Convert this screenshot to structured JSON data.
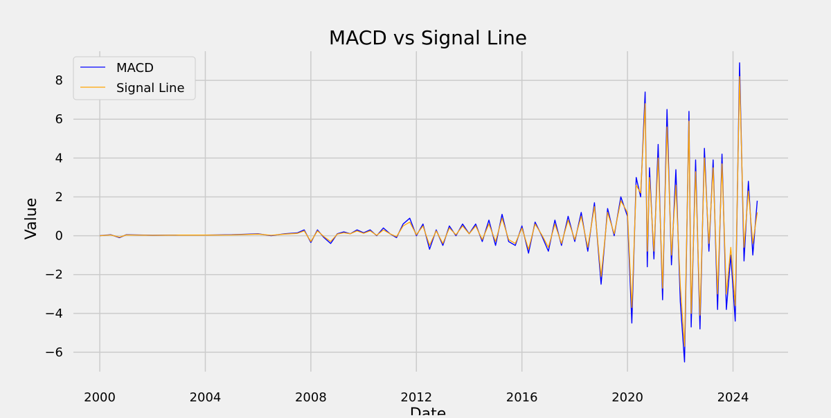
{
  "chart_data": {
    "type": "line",
    "title": "MACD vs Signal Line",
    "xlabel": "Date",
    "ylabel": "Value",
    "xlim": [
      "1999-01-01",
      "2026-02-01"
    ],
    "ylim": [
      -7.0,
      9.5
    ],
    "x_ticks": [
      {
        "value": "2000-01-01",
        "label": "2000"
      },
      {
        "value": "2004-01-01",
        "label": "2004"
      },
      {
        "value": "2008-01-01",
        "label": "2008"
      },
      {
        "value": "2012-01-01",
        "label": "2012"
      },
      {
        "value": "2016-01-01",
        "label": "2016"
      },
      {
        "value": "2020-01-01",
        "label": "2020"
      },
      {
        "value": "2024-01-01",
        "label": "2024"
      }
    ],
    "y_ticks": [
      {
        "value": -6,
        "label": "−6"
      },
      {
        "value": -4,
        "label": "−4"
      },
      {
        "value": -2,
        "label": "−2"
      },
      {
        "value": 0,
        "label": "0"
      },
      {
        "value": 2,
        "label": "2"
      },
      {
        "value": 4,
        "label": "4"
      },
      {
        "value": 6,
        "label": "6"
      },
      {
        "value": 8,
        "label": "8"
      }
    ],
    "grid": true,
    "legend": "top-left",
    "series": [
      {
        "name": "MACD",
        "color": "#0000ff",
        "x": [
          "2000-01-01",
          "2000-06-01",
          "2000-10-01",
          "2001-01-01",
          "2002-01-01",
          "2003-01-01",
          "2004-01-01",
          "2005-01-01",
          "2006-01-01",
          "2006-07-01",
          "2007-01-01",
          "2007-07-01",
          "2007-10-01",
          "2008-01-01",
          "2008-04-01",
          "2008-07-01",
          "2008-10-01",
          "2009-01-01",
          "2009-04-01",
          "2009-07-01",
          "2009-10-01",
          "2010-01-01",
          "2010-04-01",
          "2010-07-01",
          "2010-10-01",
          "2011-01-01",
          "2011-04-01",
          "2011-07-01",
          "2011-10-01",
          "2012-01-01",
          "2012-04-01",
          "2012-07-01",
          "2012-10-01",
          "2013-01-01",
          "2013-04-01",
          "2013-07-01",
          "2013-10-01",
          "2014-01-01",
          "2014-04-01",
          "2014-07-01",
          "2014-10-01",
          "2015-01-01",
          "2015-04-01",
          "2015-07-01",
          "2015-10-01",
          "2016-01-01",
          "2016-04-01",
          "2016-07-01",
          "2016-10-01",
          "2017-01-01",
          "2017-04-01",
          "2017-07-01",
          "2017-10-01",
          "2018-01-01",
          "2018-04-01",
          "2018-07-01",
          "2018-10-01",
          "2019-01-01",
          "2019-04-01",
          "2019-07-01",
          "2019-10-01",
          "2020-01-01",
          "2020-03-01",
          "2020-05-01",
          "2020-07-01",
          "2020-09-01",
          "2020-10-01",
          "2020-11-01",
          "2021-01-01",
          "2021-03-01",
          "2021-05-01",
          "2021-07-01",
          "2021-09-01",
          "2021-11-01",
          "2022-01-01",
          "2022-03-01",
          "2022-05-01",
          "2022-06-01",
          "2022-08-01",
          "2022-10-01",
          "2022-12-01",
          "2023-02-01",
          "2023-04-01",
          "2023-06-01",
          "2023-08-01",
          "2023-10-01",
          "2023-12-01",
          "2024-02-01",
          "2024-04-01",
          "2024-06-01",
          "2024-08-01",
          "2024-10-01",
          "2024-12-01"
        ],
        "y": [
          0.0,
          0.05,
          -0.1,
          0.05,
          0.02,
          0.03,
          0.03,
          0.05,
          0.1,
          0.0,
          0.1,
          0.15,
          0.3,
          -0.35,
          0.3,
          -0.1,
          -0.4,
          0.1,
          0.2,
          0.1,
          0.3,
          0.15,
          0.3,
          0.0,
          0.4,
          0.1,
          -0.1,
          0.6,
          0.9,
          0.0,
          0.6,
          -0.7,
          0.3,
          -0.5,
          0.5,
          0.0,
          0.6,
          0.1,
          0.6,
          -0.3,
          0.8,
          -0.5,
          1.1,
          -0.3,
          -0.5,
          0.5,
          -0.9,
          0.7,
          0.0,
          -0.8,
          0.8,
          -0.5,
          1.0,
          -0.3,
          1.2,
          -0.8,
          1.7,
          -2.5,
          1.4,
          0.0,
          2.0,
          1.0,
          -4.5,
          3.0,
          2.0,
          7.4,
          -1.6,
          3.5,
          -1.2,
          4.7,
          -3.3,
          6.5,
          -1.5,
          3.4,
          -3.4,
          -6.5,
          6.4,
          -4.7,
          3.9,
          -4.8,
          4.5,
          -0.8,
          3.9,
          -3.8,
          4.2,
          -3.8,
          -1.0,
          -4.4,
          8.9,
          -1.3,
          2.8,
          -1.0,
          1.8
        ]
      },
      {
        "name": "Signal Line",
        "color": "#ffa500",
        "x": [
          "2000-01-01",
          "2000-06-01",
          "2000-10-01",
          "2001-01-01",
          "2002-01-01",
          "2003-01-01",
          "2004-01-01",
          "2005-01-01",
          "2006-01-01",
          "2006-07-01",
          "2007-01-01",
          "2007-07-01",
          "2007-10-01",
          "2008-01-01",
          "2008-04-01",
          "2008-07-01",
          "2008-10-01",
          "2009-01-01",
          "2009-04-01",
          "2009-07-01",
          "2009-10-01",
          "2010-01-01",
          "2010-04-01",
          "2010-07-01",
          "2010-10-01",
          "2011-01-01",
          "2011-04-01",
          "2011-07-01",
          "2011-10-01",
          "2012-01-01",
          "2012-04-01",
          "2012-07-01",
          "2012-10-01",
          "2013-01-01",
          "2013-04-01",
          "2013-07-01",
          "2013-10-01",
          "2014-01-01",
          "2014-04-01",
          "2014-07-01",
          "2014-10-01",
          "2015-01-01",
          "2015-04-01",
          "2015-07-01",
          "2015-10-01",
          "2016-01-01",
          "2016-04-01",
          "2016-07-01",
          "2016-10-01",
          "2017-01-01",
          "2017-04-01",
          "2017-07-01",
          "2017-10-01",
          "2018-01-01",
          "2018-04-01",
          "2018-07-01",
          "2018-10-01",
          "2019-01-01",
          "2019-04-01",
          "2019-07-01",
          "2019-10-01",
          "2020-01-01",
          "2020-03-01",
          "2020-05-01",
          "2020-07-01",
          "2020-09-01",
          "2020-10-01",
          "2020-11-01",
          "2021-01-01",
          "2021-03-01",
          "2021-05-01",
          "2021-07-01",
          "2021-09-01",
          "2021-11-01",
          "2022-01-01",
          "2022-03-01",
          "2022-05-01",
          "2022-06-01",
          "2022-08-01",
          "2022-10-01",
          "2022-12-01",
          "2023-02-01",
          "2023-04-01",
          "2023-06-01",
          "2023-08-01",
          "2023-10-01",
          "2023-12-01",
          "2024-02-01",
          "2024-04-01",
          "2024-06-01",
          "2024-08-01",
          "2024-10-01",
          "2024-12-01"
        ],
        "y": [
          0.0,
          0.04,
          -0.08,
          0.04,
          0.02,
          0.03,
          0.03,
          0.04,
          0.08,
          0.02,
          0.08,
          0.12,
          0.25,
          -0.3,
          0.25,
          -0.05,
          -0.3,
          0.08,
          0.15,
          0.1,
          0.25,
          0.12,
          0.25,
          0.02,
          0.3,
          0.1,
          -0.05,
          0.5,
          0.7,
          0.05,
          0.5,
          -0.5,
          0.25,
          -0.4,
          0.4,
          0.05,
          0.5,
          0.1,
          0.5,
          -0.2,
          0.6,
          -0.3,
          0.9,
          -0.2,
          -0.4,
          0.4,
          -0.7,
          0.6,
          0.05,
          -0.6,
          0.6,
          -0.4,
          0.8,
          -0.2,
          1.0,
          -0.6,
          1.5,
          -2.1,
          1.2,
          0.1,
          1.8,
          1.2,
          -3.7,
          2.6,
          2.2,
          6.8,
          -0.8,
          3.0,
          -0.8,
          4.0,
          -2.7,
          5.6,
          -1.0,
          2.6,
          -2.6,
          -5.7,
          5.9,
          -4.0,
          3.3,
          -4.1,
          4.0,
          -0.4,
          3.5,
          -3.0,
          3.7,
          -3.0,
          -0.6,
          -3.6,
          8.2,
          -0.6,
          2.3,
          -0.4,
          1.2
        ]
      }
    ]
  }
}
